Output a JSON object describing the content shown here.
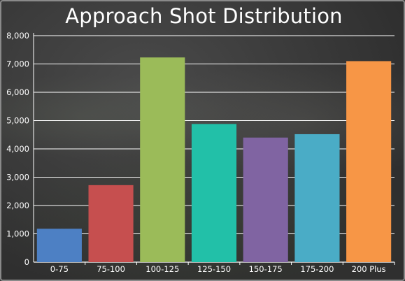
{
  "chart_data": {
    "type": "bar",
    "title": "Approach Shot Distribution",
    "xlabel": "",
    "ylabel": "",
    "categories": [
      "0-75",
      "75-100",
      "100-125",
      "125-150",
      "150-175",
      "175-200",
      "200 Plus"
    ],
    "values": [
      1180,
      2720,
      7230,
      4880,
      4400,
      4520,
      7100
    ],
    "colors": [
      "#4d80c4",
      "#c64f4f",
      "#9bbb59",
      "#22c0a8",
      "#8064a2",
      "#4aacc6",
      "#f79646"
    ],
    "ylim": [
      0,
      8000
    ],
    "yticks": [
      0,
      1000,
      2000,
      3000,
      4000,
      5000,
      6000,
      7000,
      8000
    ],
    "ytick_labels": [
      "0",
      "1,000",
      "2,000",
      "3,000",
      "4,000",
      "5,000",
      "6,000",
      "7,000",
      "8,000"
    ],
    "grid": true,
    "gridline_color": "#ffffff",
    "axis_color": "#ffffff"
  }
}
